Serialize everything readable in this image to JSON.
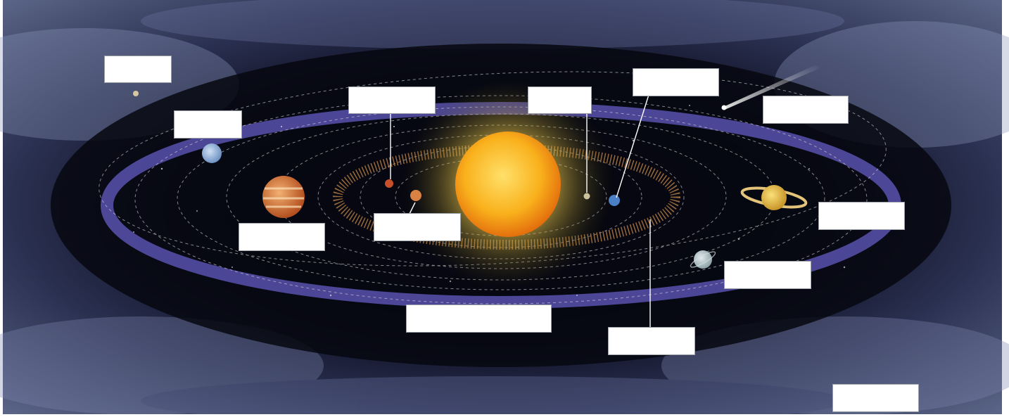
{
  "diagram": {
    "bodies": [
      {
        "name": "sun-icon",
        "color": "#f9b11c"
      },
      {
        "name": "mercury-icon",
        "color": "#c9c29a"
      },
      {
        "name": "venus-icon",
        "color": "#d98243"
      },
      {
        "name": "earth-icon",
        "color": "#4a80c8"
      },
      {
        "name": "mars-icon",
        "color": "#c7502a"
      },
      {
        "name": "jupiter-icon",
        "color": "#d07a3a"
      },
      {
        "name": "saturn-icon",
        "color": "#e6c24a"
      },
      {
        "name": "uranus-icon",
        "color": "#b9c8cc"
      },
      {
        "name": "neptune-icon",
        "color": "#8fb2dd"
      },
      {
        "name": "pluto-icon",
        "color": "#d8c7a0"
      },
      {
        "name": "comet-icon",
        "color": "#ffffff"
      }
    ],
    "labels": [
      {
        "id": "label-pluto",
        "text": ""
      },
      {
        "id": "label-neptune",
        "text": ""
      },
      {
        "id": "label-mars",
        "text": ""
      },
      {
        "id": "label-mercury",
        "text": ""
      },
      {
        "id": "label-earth",
        "text": ""
      },
      {
        "id": "label-comet",
        "text": ""
      },
      {
        "id": "label-jupiter",
        "text": ""
      },
      {
        "id": "label-venus",
        "text": ""
      },
      {
        "id": "label-saturn",
        "text": ""
      },
      {
        "id": "label-uranus",
        "text": ""
      },
      {
        "id": "label-kuiper-belt",
        "text": ""
      },
      {
        "id": "label-asteroid-belt",
        "text": ""
      },
      {
        "id": "label-oort-cloud",
        "text": ""
      }
    ]
  }
}
